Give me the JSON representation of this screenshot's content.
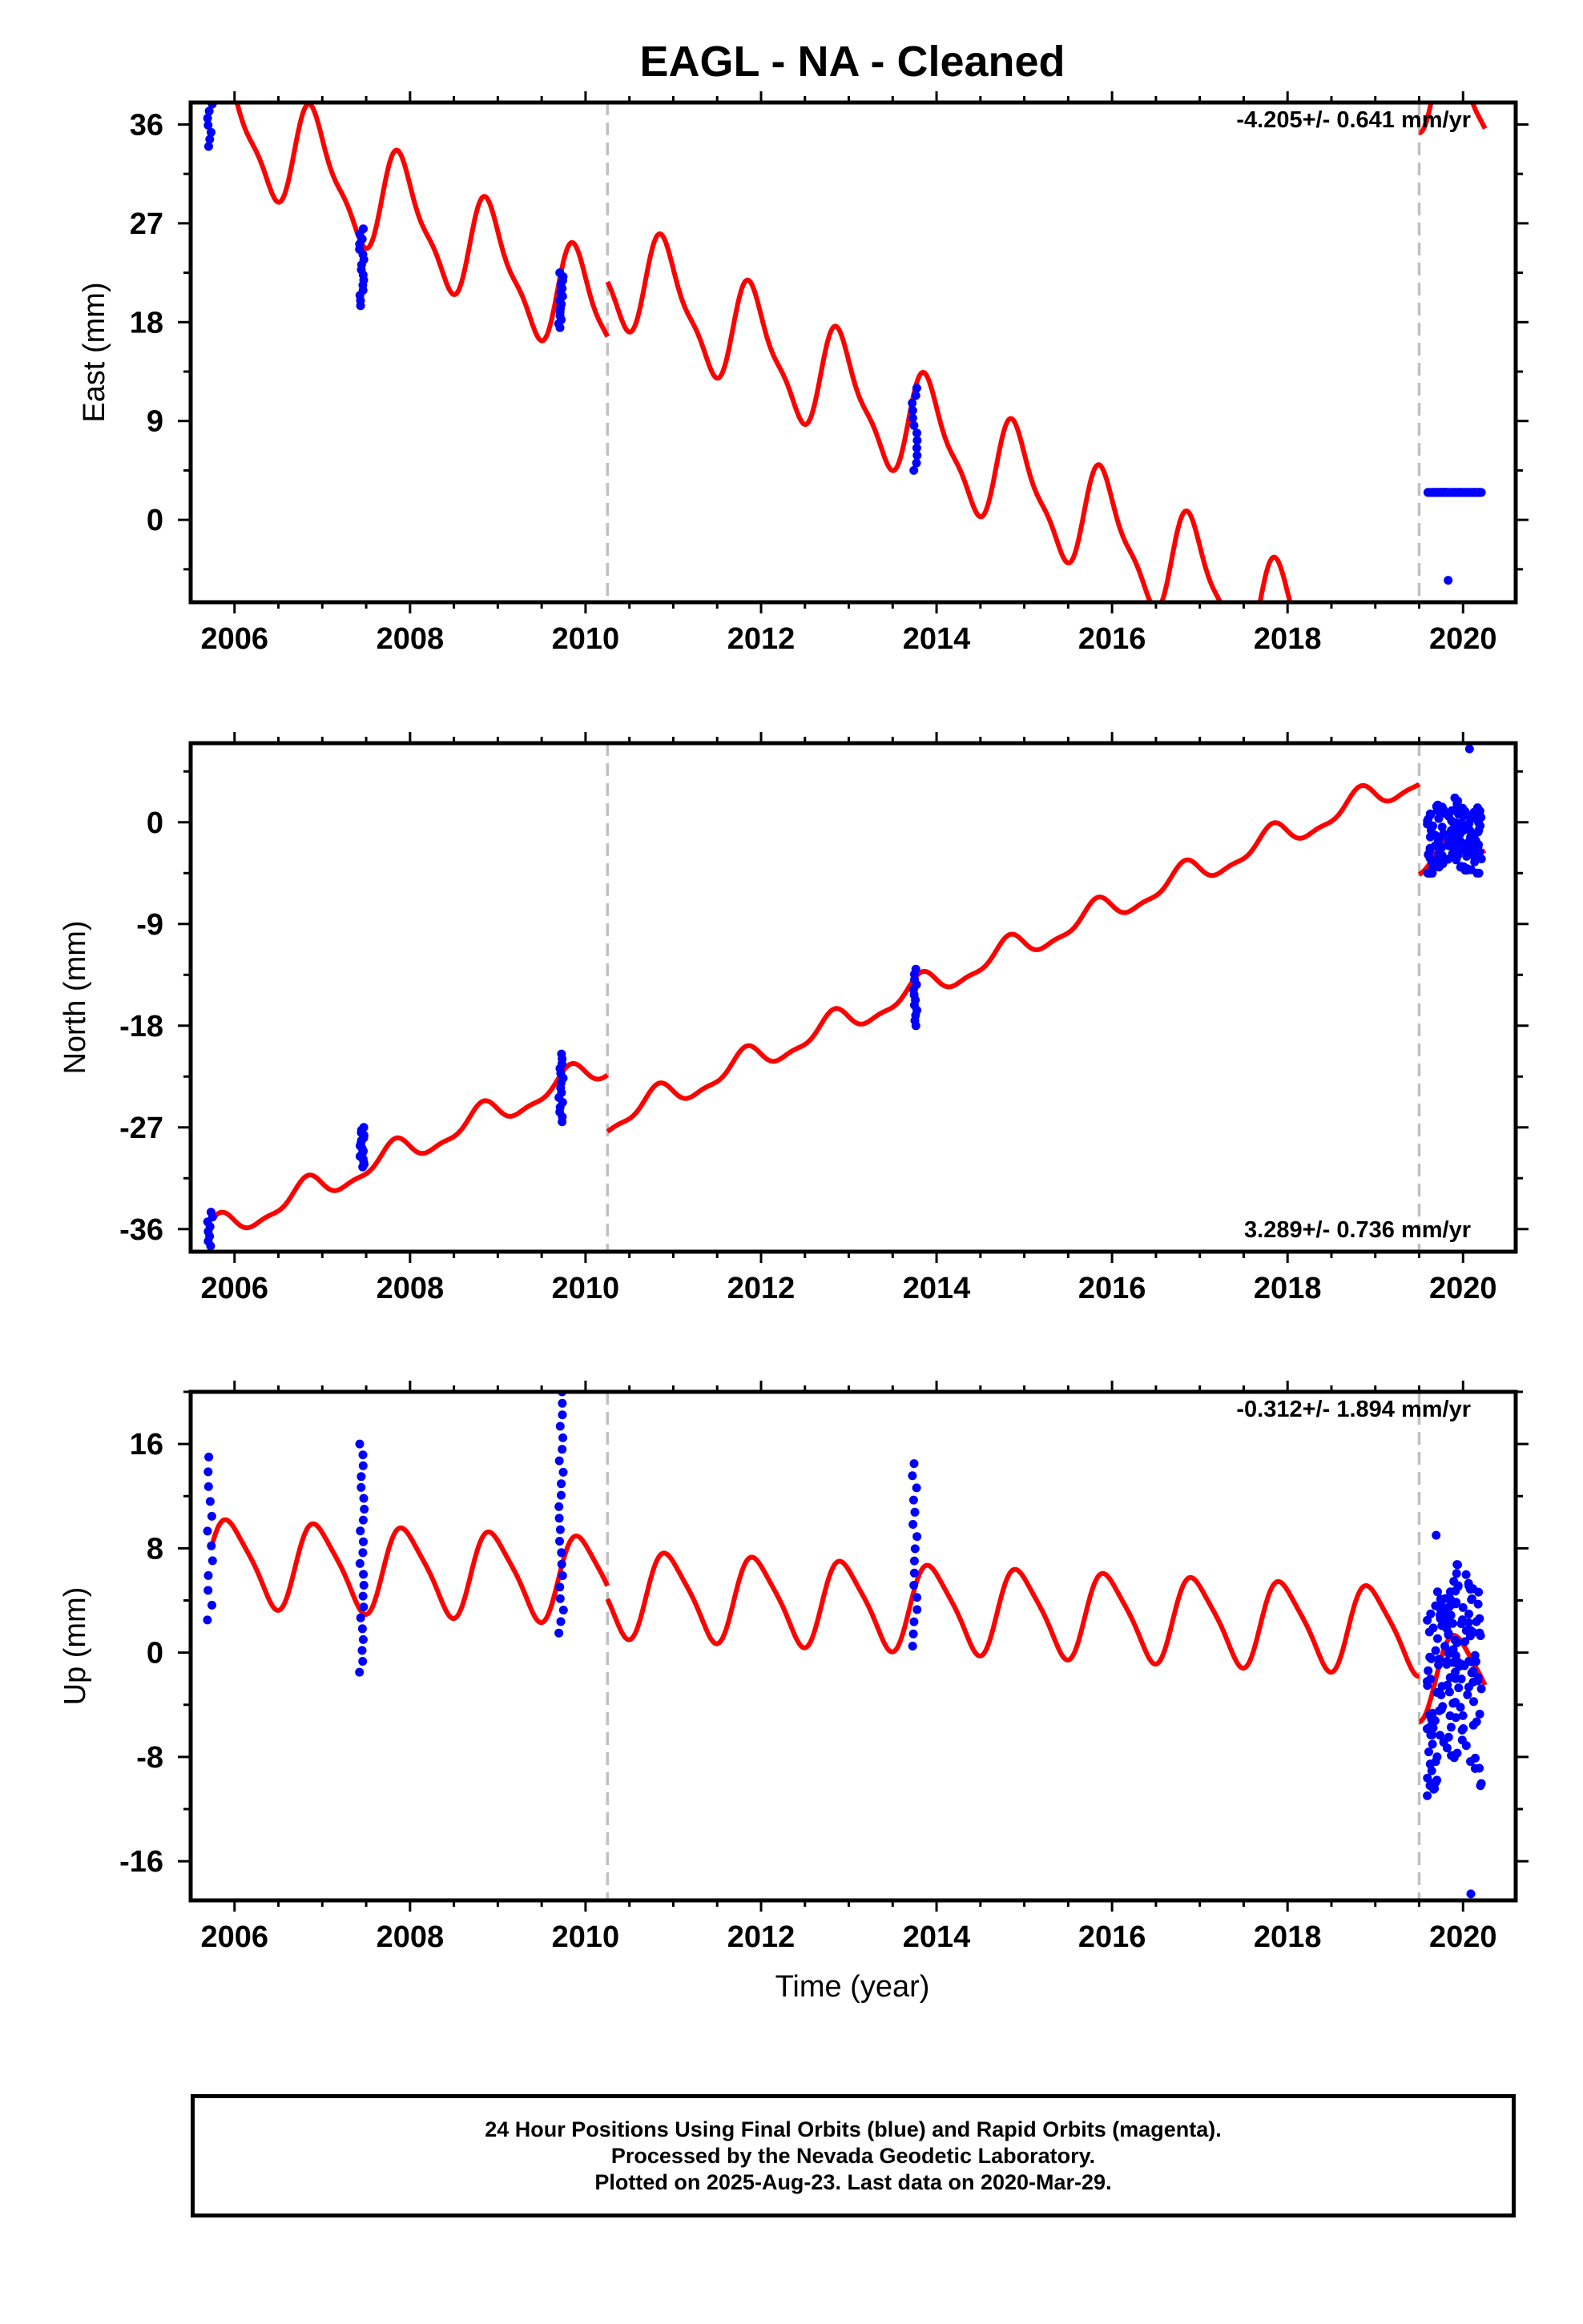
{
  "page_title": "EAGL  - NA - Cleaned",
  "xlabel": "Time (year)",
  "footer": {
    "line1": "24 Hour Positions Using Final Orbits (blue) and Rapid Orbits (magenta).",
    "line2": "Processed by the Nevada Geodetic Laboratory.",
    "line3": "Plotted on 2025-Aug-23. Last data on 2020-Mar-29."
  },
  "colors": {
    "data_points": "#0000ff",
    "model_fit": "#ff0000",
    "breaks": "#c0c0c0"
  },
  "chart_data": [
    {
      "type": "scatter",
      "panel": "east",
      "ylabel": "East (mm)",
      "rate_label": "-4.205+/- 0.641 mm/yr",
      "xlim": [
        2005.5,
        2020.6
      ],
      "ylim": [
        -7.5,
        38
      ],
      "x_ticks": [
        2006,
        2008,
        2010,
        2012,
        2014,
        2016,
        2018,
        2020
      ],
      "y_ticks": [
        0,
        9,
        18,
        27,
        36
      ],
      "breaks": [
        2010.25,
        2019.5
      ],
      "fit": {
        "rate": -4.205,
        "anchor_year": 2005.75,
        "anchor_value": 37.0,
        "annual_amplitude": 4.6,
        "annual_phase": 0.55,
        "semiannual_amplitude": 1.4,
        "semiannual_phase": 0.8,
        "offsets": [
          {
            "year": 2010.25,
            "value": 5.0
          },
          {
            "year": 2019.5,
            "value": 56.0
          }
        ]
      },
      "clusters": [
        {
          "year": 2005.72,
          "min": 34.0,
          "max": 38.5,
          "count": 8
        },
        {
          "year": 2007.45,
          "min": 19.5,
          "max": 26.5,
          "count": 16
        },
        {
          "year": 2009.72,
          "min": 17.5,
          "max": 22.5,
          "count": 15
        },
        {
          "year": 2013.75,
          "min": 4.5,
          "max": 12.0,
          "count": 12
        },
        {
          "year": 2019.9,
          "min": -5.5,
          "max": 2.5,
          "count": 140,
          "span": 0.62
        }
      ]
    },
    {
      "type": "scatter",
      "panel": "north",
      "ylabel": "North (mm)",
      "rate_label": "3.289+/- 0.736 mm/yr",
      "xlim": [
        2005.5,
        2020.6
      ],
      "ylim": [
        -38,
        7
      ],
      "x_ticks": [
        2006,
        2008,
        2010,
        2012,
        2014,
        2016,
        2018,
        2020
      ],
      "y_ticks": [
        -36,
        -27,
        -18,
        -9,
        0
      ],
      "breaks": [
        2010.25,
        2019.5
      ],
      "fit": {
        "rate": 3.289,
        "anchor_year": 2005.75,
        "anchor_value": -36.3,
        "annual_amplitude": 1.1,
        "annual_phase": 1.2,
        "semiannual_amplitude": 0.4,
        "semiannual_phase": 0.4,
        "offsets": [
          {
            "year": 2010.25,
            "value": -5.0
          },
          {
            "year": 2019.5,
            "value": -8.0
          }
        ]
      },
      "clusters": [
        {
          "year": 2005.72,
          "min": -37.5,
          "max": -34.5,
          "count": 8
        },
        {
          "year": 2007.45,
          "min": -30.5,
          "max": -27.0,
          "count": 16
        },
        {
          "year": 2009.72,
          "min": -26.5,
          "max": -20.5,
          "count": 15
        },
        {
          "year": 2013.75,
          "min": -18.0,
          "max": -13.0,
          "count": 12
        },
        {
          "year": 2019.9,
          "min": -4.5,
          "max": 6.5,
          "count": 140,
          "span": 0.62
        }
      ]
    },
    {
      "type": "scatter",
      "panel": "up",
      "ylabel": "Up (mm)",
      "rate_label": "-0.312+/- 1.894 mm/yr",
      "xlim": [
        2005.5,
        2020.6
      ],
      "ylim": [
        -19,
        20
      ],
      "x_ticks": [
        2006,
        2008,
        2010,
        2012,
        2014,
        2016,
        2018,
        2020
      ],
      "y_ticks": [
        -16,
        -8,
        0,
        8,
        16
      ],
      "breaks": [
        2010.25,
        2019.5
      ],
      "fit": {
        "rate": -0.312,
        "anchor_year": 2005.75,
        "anchor_value": 7.0,
        "annual_amplitude": 3.2,
        "annual_phase": 0.3,
        "semiannual_amplitude": 0.6,
        "semiannual_phase": 0.9,
        "offsets": [
          {
            "year": 2010.25,
            "value": -1.0
          },
          {
            "year": 2019.5,
            "value": -3.5
          }
        ]
      },
      "clusters": [
        {
          "year": 2005.72,
          "min": 2.5,
          "max": 15.0,
          "count": 12
        },
        {
          "year": 2007.45,
          "min": -1.5,
          "max": 16.0,
          "count": 22
        },
        {
          "year": 2009.72,
          "min": 1.5,
          "max": 20.0,
          "count": 22
        },
        {
          "year": 2013.75,
          "min": 0.5,
          "max": 14.5,
          "count": 16
        },
        {
          "year": 2019.9,
          "min": -18.5,
          "max": 9.0,
          "count": 170,
          "span": 0.62
        }
      ]
    }
  ]
}
